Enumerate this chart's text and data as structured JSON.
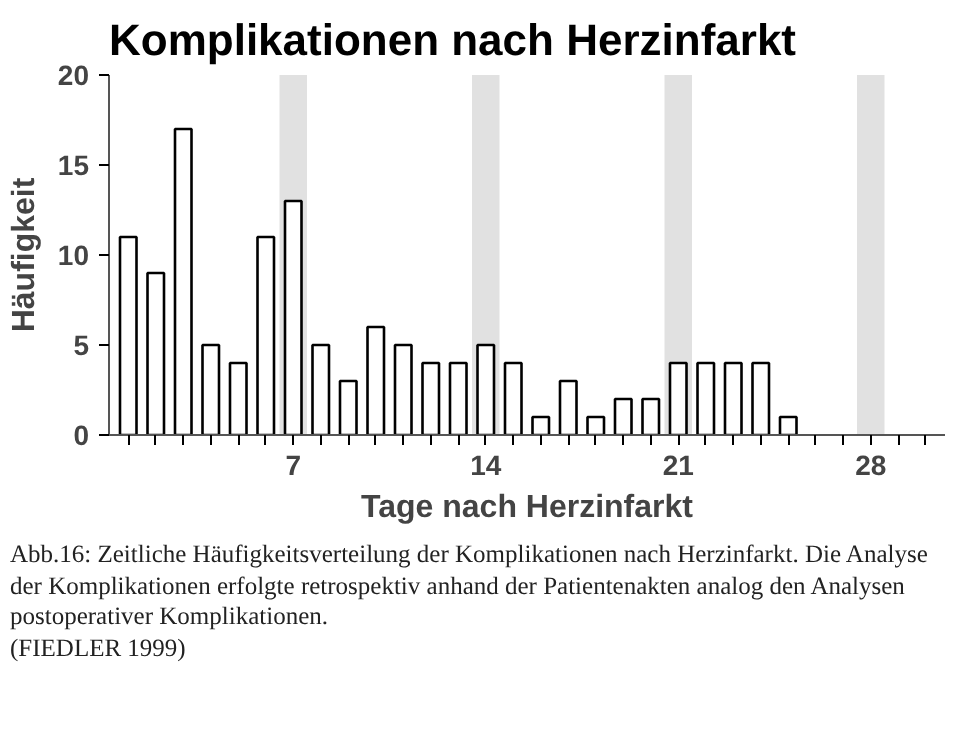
{
  "chart_data": {
    "type": "bar",
    "title": "Komplikationen nach Herzinfarkt",
    "xlabel": "Tage nach Herzinfarkt",
    "ylabel": "Häufigkeit",
    "x": [
      1,
      2,
      3,
      4,
      5,
      6,
      7,
      8,
      9,
      10,
      11,
      12,
      13,
      14,
      15,
      16,
      17,
      18,
      19,
      20,
      21,
      22,
      23,
      24,
      25
    ],
    "values": [
      11,
      9,
      17,
      5,
      4,
      11,
      13,
      5,
      3,
      6,
      5,
      4,
      4,
      5,
      4,
      1,
      3,
      1,
      2,
      2,
      4,
      4,
      4,
      4,
      1
    ],
    "color": "#ffffff",
    "xlim": [
      0.3,
      30.7
    ],
    "xticks": [
      {
        "value": 1,
        "label": null
      },
      {
        "value": 2,
        "label": null
      },
      {
        "value": 3,
        "label": null
      },
      {
        "value": 4,
        "label": null
      },
      {
        "value": 5,
        "label": null
      },
      {
        "value": 6,
        "label": null
      },
      7,
      {
        "value": 8,
        "label": null
      },
      {
        "value": 9,
        "label": null
      },
      {
        "value": 10,
        "label": null
      },
      {
        "value": 11,
        "label": null
      },
      {
        "value": 12,
        "label": null
      },
      {
        "value": 13,
        "label": null
      },
      14,
      {
        "value": 15,
        "label": null
      },
      {
        "value": 16,
        "label": null
      },
      {
        "value": 17,
        "label": null
      },
      {
        "value": 18,
        "label": null
      },
      {
        "value": 19,
        "label": null
      },
      {
        "value": 20,
        "label": null
      },
      21,
      {
        "value": 22,
        "label": null
      },
      {
        "value": 23,
        "label": null
      },
      {
        "value": 24,
        "label": null
      },
      {
        "value": 25,
        "label": null
      },
      {
        "value": 26,
        "label": null
      },
      {
        "value": 27,
        "label": null
      },
      28,
      {
        "value": 29,
        "label": null
      },
      {
        "value": 30,
        "label": null
      }
    ],
    "ylim": [
      0,
      20
    ],
    "yticks": [
      0,
      5,
      10,
      15,
      20
    ],
    "bands": [
      {
        "axis": "x",
        "from": 6.5,
        "to": 7.5,
        "color": "#d9d9d9"
      },
      {
        "axis": "x",
        "from": 13.5,
        "to": 14.5,
        "color": "#d9d9d9"
      },
      {
        "axis": "x",
        "from": 20.5,
        "to": 21.5,
        "color": "#d9d9d9"
      },
      {
        "axis": "x",
        "from": 27.5,
        "to": 28.5,
        "color": "#d9d9d9"
      }
    ],
    "grid": false,
    "annotations": [
      "Abb.16: Zeitliche Häufigkeitsverteilung der Komplikationen nach Herzinfarkt. Die Analyse der Komplikationen erfolgte retrospektiv anhand der Patientenakten analog den Analysen postoperativer Komplikationen.",
      "(FIEDLER 1999)"
    ]
  }
}
